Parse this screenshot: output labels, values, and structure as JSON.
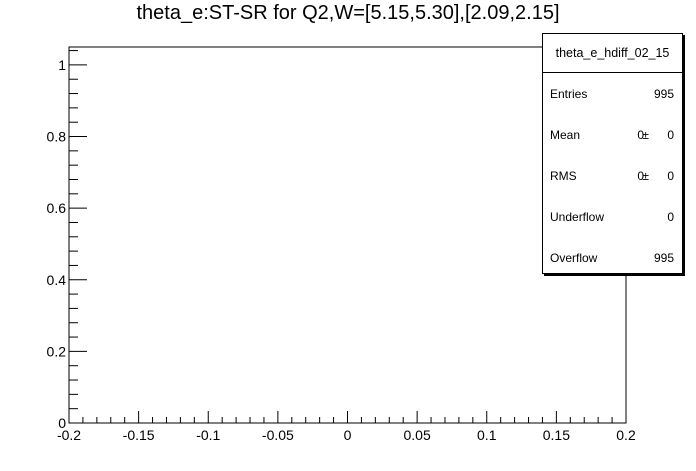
{
  "chart_data": {
    "type": "bar",
    "title": "theta_e:ST-SR for Q2,W=[5.15,5.30],[2.09,2.15]",
    "xlabel": "",
    "ylabel": "",
    "xlim": [
      -0.2,
      0.2
    ],
    "ylim": [
      0,
      1.05
    ],
    "x_ticks": [
      "-0.2",
      "-0.15",
      "-0.1",
      "-0.05",
      "0",
      "0.05",
      "0.1",
      "0.15",
      "0.2"
    ],
    "y_ticks": [
      "0",
      "0.2",
      "0.4",
      "0.6",
      "0.8",
      "1"
    ],
    "x_tick_values": [
      -0.2,
      -0.15,
      -0.1,
      -0.05,
      0,
      0.05,
      0.1,
      0.15,
      0.2
    ],
    "y_tick_values": [
      0,
      0.2,
      0.4,
      0.6,
      0.8,
      1
    ],
    "grid": false,
    "values": []
  },
  "statbox": {
    "name": "theta_e_hdiff_02_15",
    "entries_label": "Entries",
    "entries_value": "995",
    "mean_label": "Mean",
    "mean_value": "0",
    "mean_pm": "±",
    "mean_err": "0",
    "rms_label": "RMS",
    "rms_value": "0",
    "rms_pm": "±",
    "rms_err": "0",
    "underflow_label": "Underflow",
    "underflow_value": "0",
    "overflow_label": "Overflow",
    "overflow_value": "995"
  }
}
